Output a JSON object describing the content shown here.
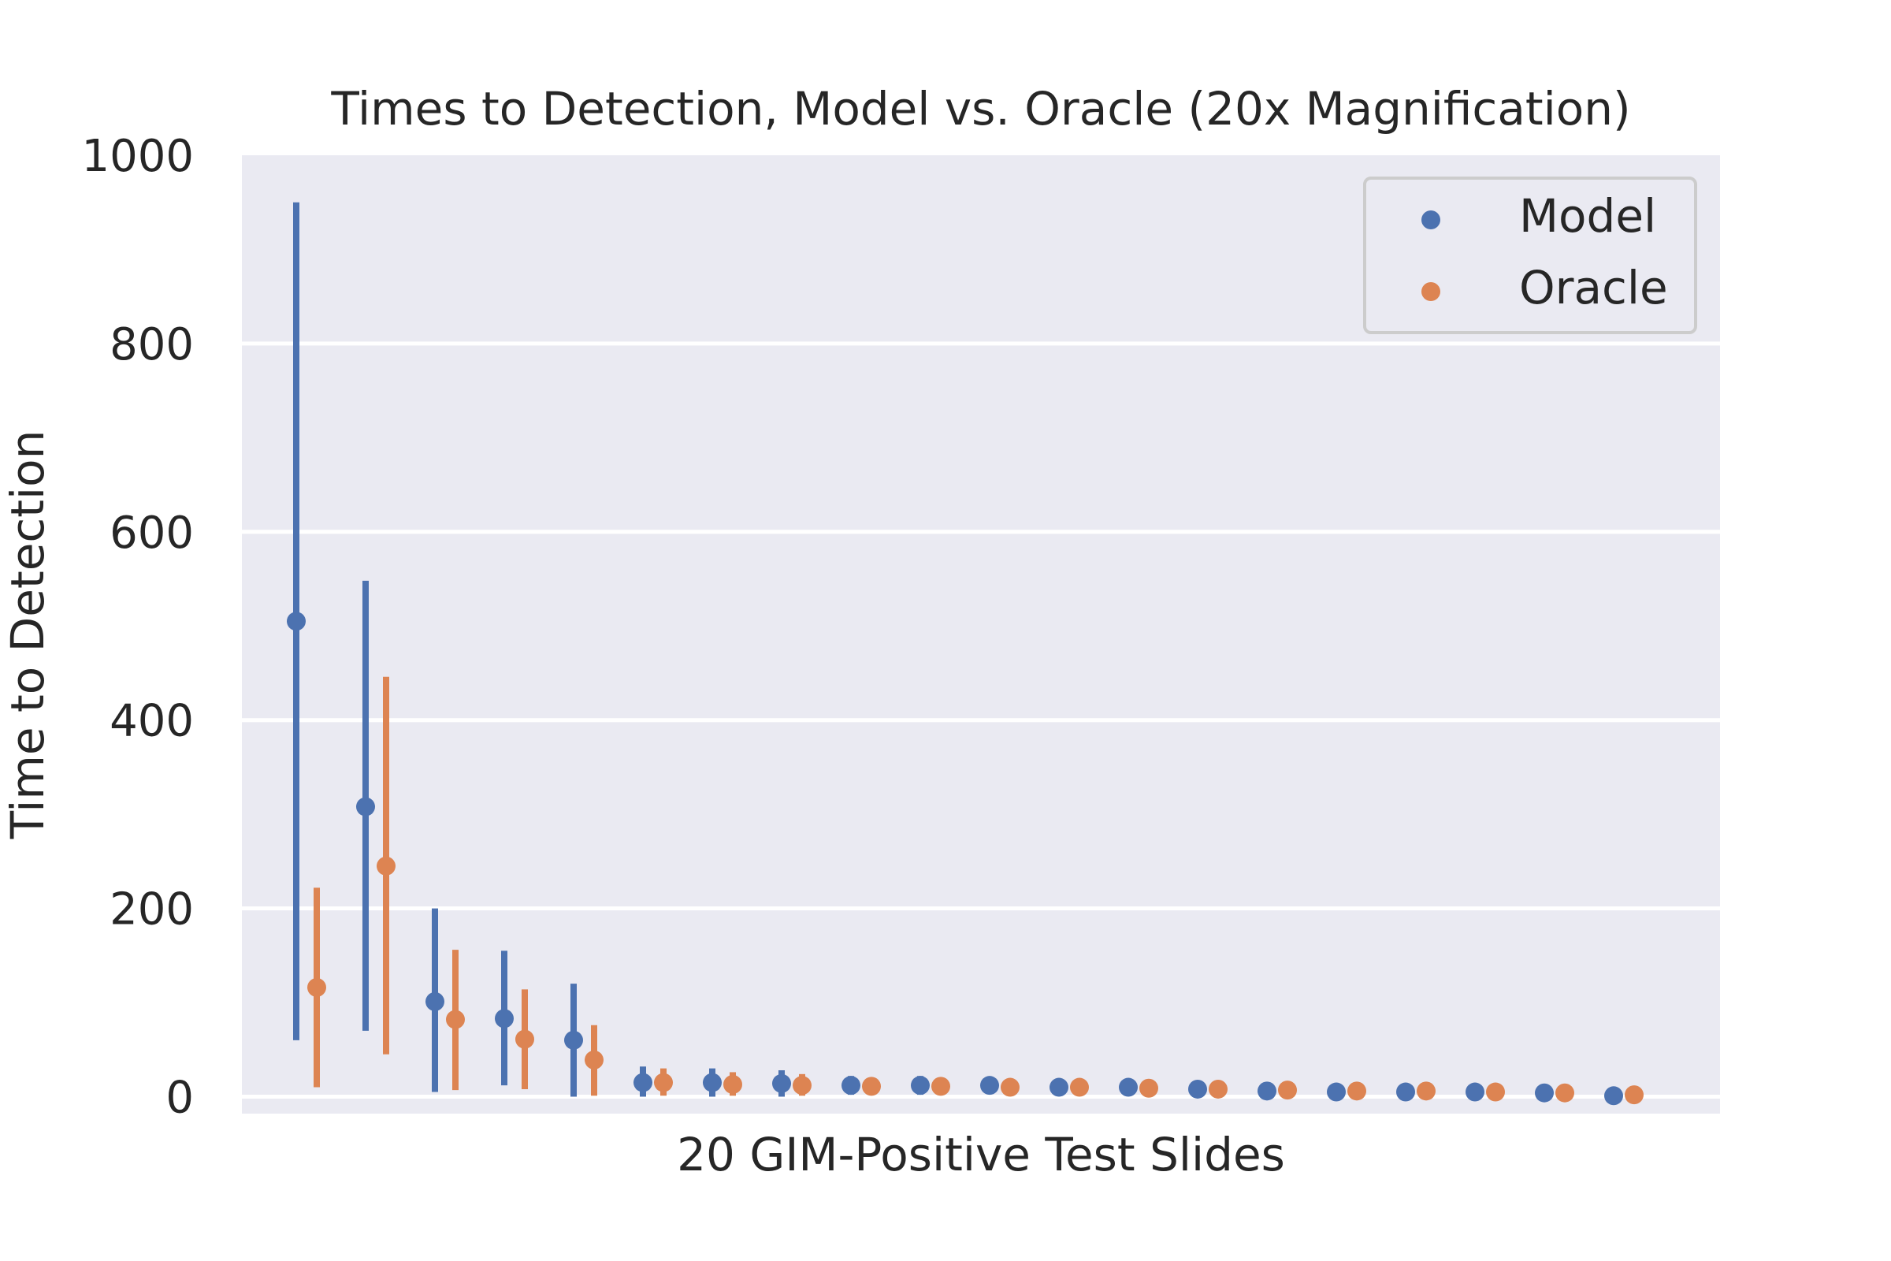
{
  "chart_data": {
    "type": "scatter",
    "title": "Times to Detection, Model vs. Oracle (20x Magnification)",
    "xlabel": "20 GIM-Positive Test Slides",
    "ylabel": "Time to Detection",
    "ylim": [
      -18,
      1000
    ],
    "yticks": [
      0,
      200,
      400,
      600,
      800,
      1000
    ],
    "legend_position": "top-right",
    "grid": true,
    "series": [
      {
        "name": "Model",
        "color": "#4c72b0",
        "values": [
          505,
          308,
          101,
          83,
          60,
          15,
          15,
          14,
          12,
          12,
          12,
          10,
          10,
          8,
          6,
          5,
          5,
          5,
          4,
          1
        ],
        "ci_low": [
          60,
          70,
          5,
          12,
          0,
          0,
          0,
          0,
          2,
          2,
          4,
          6,
          6,
          4,
          2,
          1,
          1,
          1,
          0,
          0
        ],
        "ci_high": [
          950,
          548,
          200,
          155,
          120,
          32,
          30,
          28,
          22,
          22,
          20,
          14,
          14,
          12,
          10,
          9,
          9,
          9,
          8,
          3
        ]
      },
      {
        "name": "Oracle",
        "color": "#dd8452",
        "values": [
          116,
          245,
          82,
          61,
          39,
          15,
          13,
          12,
          11,
          11,
          10,
          10,
          9,
          8,
          7,
          6,
          6,
          5,
          4,
          2
        ],
        "ci_low": [
          10,
          45,
          7,
          8,
          1,
          1,
          1,
          1,
          3,
          3,
          4,
          5,
          4,
          3,
          2,
          2,
          2,
          1,
          1,
          0
        ],
        "ci_high": [
          222,
          446,
          156,
          114,
          76,
          30,
          26,
          24,
          20,
          19,
          17,
          14,
          14,
          12,
          11,
          10,
          10,
          9,
          8,
          4
        ]
      }
    ]
  }
}
